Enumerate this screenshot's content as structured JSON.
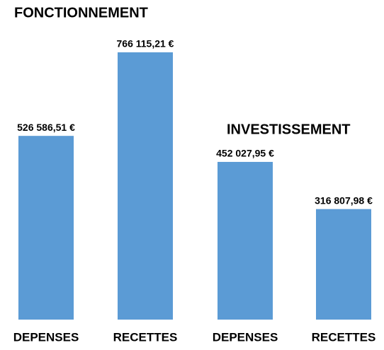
{
  "chart_data": [
    {
      "type": "bar",
      "title": "FONCTIONNEMENT",
      "categories": [
        "DEPENSES",
        "RECETTES"
      ],
      "values": [
        526586.51,
        766115.21
      ],
      "value_labels": [
        "526 586,51 €",
        "766 115,21 €"
      ],
      "color": "#5b9bd5"
    },
    {
      "type": "bar",
      "title": "INVESTISSEMENT",
      "categories": [
        "DEPENSES",
        "RECETTES"
      ],
      "values": [
        452027.95,
        316807.98
      ],
      "value_labels": [
        "452 027,95 €",
        "316 807,98 €"
      ],
      "color": "#5b9bd5"
    }
  ]
}
